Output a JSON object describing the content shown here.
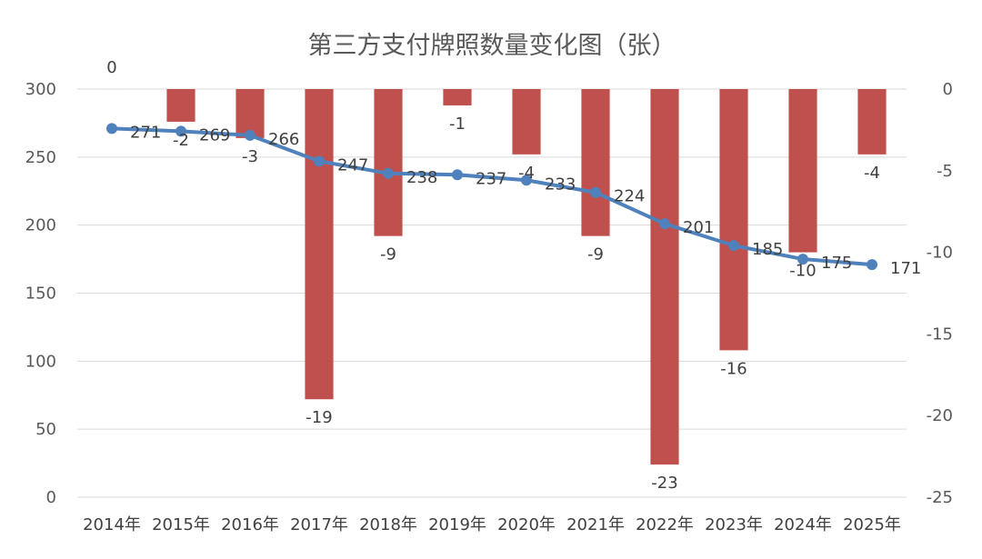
{
  "chart_data": {
    "type": "bar+line",
    "title": "第三方支付牌照数量变化图（张）",
    "categories": [
      "2014年",
      "2015年",
      "2016年",
      "2017年",
      "2018年",
      "2019年",
      "2020年",
      "2021年",
      "2022年",
      "2023年",
      "2024年",
      "2025年"
    ],
    "series": [
      {
        "type": "line",
        "axis": "left",
        "color": "#4f81bd",
        "values": [
          271,
          269,
          266,
          247,
          238,
          237,
          233,
          224,
          201,
          185,
          175,
          171
        ]
      },
      {
        "type": "bar",
        "axis": "right",
        "color": "#c0504d",
        "values": [
          0,
          -2,
          -3,
          -19,
          -9,
          -1,
          -4,
          -9,
          -23,
          -16,
          -10,
          -4
        ]
      }
    ],
    "y_left": {
      "ylim": [
        0,
        300
      ],
      "ticks": [
        "0",
        "50",
        "100",
        "150",
        "200",
        "250",
        "300"
      ]
    },
    "y_right": {
      "ylim": [
        -25,
        0
      ],
      "ticks": [
        "0",
        "-5",
        "-10",
        "-15",
        "-20",
        "-25"
      ]
    },
    "grid": true
  }
}
